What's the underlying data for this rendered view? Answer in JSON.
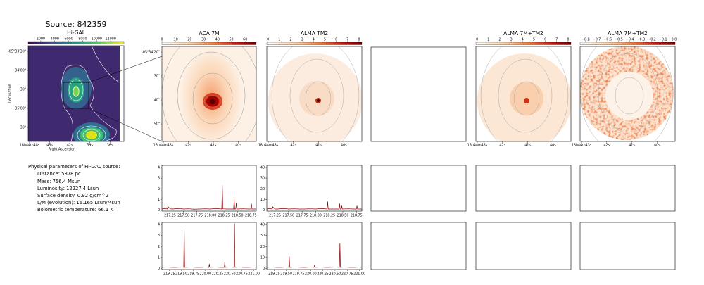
{
  "title": "Source: 842359",
  "params": {
    "heading": "Physical parameters of Hi-GAL source:",
    "lines": [
      "Distance: 5878 pc",
      "Mass: 756.4 Msun",
      "Luminosity: 12227.4 Lsun",
      "Surface density: 0.92 g/cm^2",
      "L/M (evolution): 16.165 Lsun/Msun",
      "Bolometric temperature: 66.1 K"
    ]
  },
  "chart_data": [
    {
      "type": "image",
      "title": "Hi-GAL",
      "colormap": "viridis",
      "colorbar_lim": [
        200,
        13900
      ],
      "colorbar_ticks": [
        2000,
        4000,
        6000,
        8000,
        10000,
        12000
      ],
      "xtick_labels": [
        "18h44m48s",
        "45s",
        "42s",
        "39s",
        "36s"
      ],
      "ytick_labels": [
        "-05°33'30\"",
        "34'00\"",
        "30\"",
        "35'00\"",
        "30\""
      ],
      "xlabel": "Right Ascension",
      "ylabel": "Declination"
    },
    {
      "type": "image",
      "title": "ACA 7M",
      "colormap": "heat",
      "colorbar_lim": [
        0,
        68
      ],
      "colorbar_ticks": [
        0,
        10,
        20,
        30,
        40,
        50,
        60
      ],
      "xtick_labels": [
        "18h44m43s",
        "42s",
        "41s",
        "40s"
      ],
      "ytick_labels": [
        "-05°34'20\"",
        "30\"",
        "40\"",
        "50\""
      ]
    },
    {
      "type": "image",
      "title": "ALMA TM2",
      "colormap": "heat",
      "colorbar_lim": [
        -0.1,
        8.25
      ],
      "colorbar_ticks": [
        0,
        1,
        2,
        3,
        4,
        5,
        6,
        7,
        8
      ],
      "xtick_labels": [
        "18h44m43s",
        "42s",
        "41s",
        "40s"
      ]
    },
    {
      "type": "image",
      "title": "ALMA 7M+TM2",
      "colormap": "heat",
      "colorbar_lim": [
        -0.1,
        8.25
      ],
      "colorbar_ticks": [
        0,
        1,
        2,
        3,
        4,
        5,
        6,
        7,
        8
      ],
      "xtick_labels": [
        "18h44m43s",
        "42s",
        "41s",
        "40s"
      ]
    },
    {
      "type": "image",
      "title": "ALMA 7M+TM2",
      "colormap": "heat",
      "colorbar_lim": [
        -0.85,
        0.01
      ],
      "colorbar_ticks": [
        {
          "value": -0.8,
          "label": "−0.8"
        },
        {
          "value": -0.7,
          "label": "−0.7"
        },
        {
          "value": -0.6,
          "label": "−0.6"
        },
        {
          "value": -0.5,
          "label": "−0.5"
        },
        {
          "value": -0.4,
          "label": "−0.4"
        },
        {
          "value": -0.3,
          "label": "−0.3"
        },
        {
          "value": -0.2,
          "label": "−0.2"
        },
        {
          "value": -0.1,
          "label": "−0.1"
        },
        {
          "value": 0,
          "label": "0.0"
        }
      ],
      "xtick_labels": [
        "18h44m43s",
        "42s",
        "41s",
        "40s"
      ]
    },
    {
      "type": "line",
      "color": "#8b0000",
      "xlim": [
        217.1,
        218.85
      ],
      "ylim": [
        -0.1,
        4.2
      ],
      "yticks": [
        0,
        1,
        2,
        3,
        4
      ],
      "xticks": [
        217.25,
        {
          "value": 217.5,
          "label": "217.50"
        },
        217.75,
        {
          "value": 218,
          "label": "218.00"
        },
        218.25,
        {
          "value": 218.5,
          "label": "218.50"
        },
        218.75
      ],
      "x": [
        217.1,
        217.15,
        217.2,
        217.21,
        217.25,
        217.3,
        217.4,
        217.5,
        217.6,
        217.7,
        217.8,
        217.9,
        218.0,
        218.1,
        218.21,
        218.22,
        218.23,
        218.3,
        218.43,
        218.44,
        218.45,
        218.47,
        218.48,
        218.49,
        218.6,
        218.7,
        218.75,
        218.76,
        218.77,
        218.85
      ],
      "values": [
        0.1,
        0.15,
        0.1,
        0.35,
        0.12,
        0.1,
        0.15,
        0.1,
        0.12,
        0.08,
        0.1,
        0.12,
        0.1,
        0.15,
        0.1,
        2.3,
        0.12,
        0.1,
        0.1,
        1.0,
        0.1,
        0.1,
        0.7,
        0.1,
        0.12,
        0.1,
        0.1,
        0.6,
        0.1,
        0.1
      ]
    },
    {
      "type": "line",
      "color": "#8b0000",
      "xlim": [
        217.1,
        218.85
      ],
      "ylim": [
        -1,
        42
      ],
      "yticks": [
        0,
        10,
        20,
        30,
        40
      ],
      "xticks": [
        217.25,
        {
          "value": 217.5,
          "label": "217.50"
        },
        217.75,
        {
          "value": 218,
          "label": "218.00"
        },
        218.25,
        {
          "value": 218.5,
          "label": "218.50"
        },
        218.75
      ],
      "x": [
        217.1,
        217.15,
        217.2,
        217.21,
        217.25,
        217.3,
        217.4,
        217.5,
        217.6,
        217.7,
        217.8,
        217.9,
        218.0,
        218.1,
        218.21,
        218.22,
        218.23,
        218.3,
        218.43,
        218.44,
        218.45,
        218.47,
        218.48,
        218.49,
        218.6,
        218.7,
        218.75,
        218.76,
        218.77,
        218.85
      ],
      "values": [
        1,
        1.5,
        1,
        3,
        1,
        1,
        1.5,
        1,
        1.2,
        1,
        1,
        1.2,
        1,
        1.5,
        1,
        8,
        1,
        1,
        1,
        6,
        1,
        1,
        4,
        1,
        1.2,
        1,
        1,
        4,
        1,
        1
      ]
    },
    {
      "type": "line",
      "color": "#8b0000",
      "xlim": [
        219.1,
        221.05
      ],
      "ylim": [
        -0.1,
        4.2
      ],
      "yticks": [
        0,
        1,
        2,
        3,
        4
      ],
      "xticks": [
        219.25,
        {
          "value": 219.5,
          "label": "219.50"
        },
        219.75,
        {
          "value": 220,
          "label": "220.00"
        },
        220.25,
        {
          "value": 220.5,
          "label": "220.50"
        },
        220.75,
        {
          "value": 221,
          "label": "221.00"
        }
      ],
      "x": [
        219.1,
        219.2,
        219.3,
        219.4,
        219.5,
        219.55,
        219.56,
        219.57,
        219.7,
        219.8,
        219.9,
        220.0,
        220.07,
        220.08,
        220.09,
        220.2,
        220.3,
        220.39,
        220.4,
        220.41,
        220.5,
        220.59,
        220.6,
        220.61,
        220.7,
        220.8,
        220.9,
        221.0,
        221.05
      ],
      "values": [
        0.1,
        0.12,
        0.1,
        0.1,
        0.12,
        0.1,
        3.9,
        0.1,
        0.12,
        0.1,
        0.1,
        0.12,
        0.1,
        0.4,
        0.1,
        0.12,
        0.1,
        0.1,
        0.6,
        0.1,
        0.12,
        0.1,
        4.1,
        0.1,
        0.12,
        0.1,
        0.1,
        0.12,
        0.1
      ]
    },
    {
      "type": "line",
      "color": "#8b0000",
      "xlim": [
        219.1,
        221.05
      ],
      "ylim": [
        -1,
        42
      ],
      "yticks": [
        0,
        10,
        20,
        30,
        40
      ],
      "xticks": [
        219.25,
        {
          "value": 219.5,
          "label": "219.50"
        },
        219.75,
        {
          "value": 220,
          "label": "220.00"
        },
        220.25,
        {
          "value": 220.5,
          "label": "220.50"
        },
        220.75,
        {
          "value": 221,
          "label": "221.00"
        }
      ],
      "x": [
        219.1,
        219.2,
        219.3,
        219.4,
        219.5,
        219.55,
        219.56,
        219.57,
        219.7,
        219.8,
        219.9,
        220.0,
        220.07,
        220.08,
        220.09,
        220.2,
        220.3,
        220.39,
        220.4,
        220.41,
        220.5,
        220.59,
        220.6,
        220.61,
        220.7,
        220.8,
        220.9,
        221.0,
        221.05
      ],
      "values": [
        1,
        1.2,
        1,
        1,
        1.2,
        1,
        11,
        1,
        1.2,
        1,
        1,
        1.2,
        1,
        3,
        1,
        1.2,
        1,
        1,
        1.5,
        1,
        1.2,
        1,
        23,
        1,
        1.2,
        1,
        1,
        1.2,
        1
      ]
    }
  ]
}
